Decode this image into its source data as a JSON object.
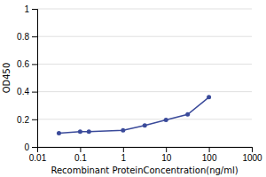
{
  "chart_data": {
    "type": "line",
    "x": [
      0.032,
      0.1,
      0.16,
      1.0,
      3.2,
      10.0,
      32.0,
      100.0
    ],
    "values": [
      0.1,
      0.11,
      0.11,
      0.12,
      0.155,
      0.195,
      0.235,
      0.36
    ],
    "color": "#3a4a9a",
    "marker": "circle",
    "x_label": "Recombinant ProteinConcentration(ng/ml)",
    "y_label": "OD450",
    "log": "x",
    "xlim": [
      0.01,
      1000
    ],
    "xticks": [
      0.01,
      0.1,
      1,
      10,
      100,
      1000
    ],
    "ylim": [
      0,
      1
    ],
    "yticks": [
      0,
      0.2,
      0.4,
      0.6,
      0.8,
      1
    ],
    "grid": "y"
  }
}
